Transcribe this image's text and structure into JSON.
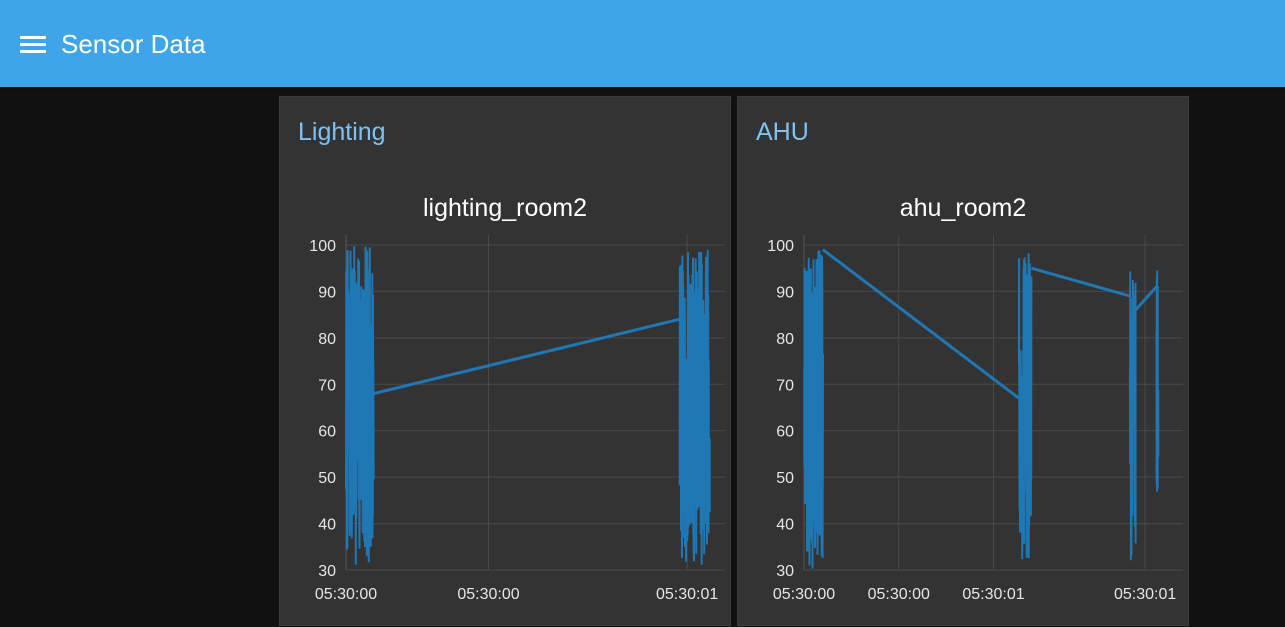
{
  "header": {
    "title": "Sensor Data",
    "menu_icon": "hamburger-menu-icon",
    "background": "#3ea6e8"
  },
  "groups": [
    {
      "title": "Lighting",
      "chart_title": "lighting_room2",
      "line_color": "#1f77b4"
    },
    {
      "title": "AHU",
      "chart_title": "ahu_room2",
      "line_color": "#1f77b4"
    }
  ],
  "chart_data": [
    {
      "type": "line",
      "title": "lighting_room2",
      "xlabel": "",
      "ylabel": "",
      "ylim": [
        30,
        100
      ],
      "grid": true,
      "y_ticks": [
        "100",
        "90",
        "80",
        "70",
        "60",
        "50",
        "40",
        "30"
      ],
      "x_ticks": [
        "05:30:00",
        "05:30:00",
        "05:30:01"
      ],
      "series": [
        {
          "x_seconds": [
            0.0,
            0.003,
            0.006,
            0.009,
            0.012,
            0.015,
            0.018,
            0.021,
            0.024,
            0.027,
            0.03,
            0.033,
            0.036,
            0.039,
            0.042,
            0.045,
            0.048,
            0.051,
            0.054,
            0.057,
            0.06,
            0.063,
            0.066,
            0.069,
            0.072,
            0.075,
            0.078,
            0.081,
            0.084,
            0.087,
            0.09,
            0.093,
            0.096,
            0.099,
            0.102,
            0.105,
            0.108,
            0.111,
            0.114,
            0.117,
            0.12,
            0.123,
            0.126,
            0.129,
            0.132,
            0.135,
            0.138,
            0.141,
            0.144,
            0.147,
            0.15,
            0.153,
            0.156,
            0.159,
            0.162,
            0.165,
            0.168,
            0.171,
            0.174,
            0.177,
            0.18,
            0.183,
            0.186,
            0.189,
            0.192,
            0.195,
            0.198,
            0.201,
            0.204,
            0.207,
            0.21,
            0.213,
            0.216,
            0.219,
            0.222,
            0.225,
            0.228,
            0.231,
            0.234,
            0.237,
            0.24,
            0.243,
            0.246,
            0.249,
            0.252,
            0.255,
            0.258,
            0.261,
            0.264,
            0.267,
            0.27,
            0.273,
            0.276,
            0.279,
            0.282,
            0.285,
            0.288,
            0.291,
            0.294,
            0.297,
            0.3,
            0.303,
            0.306,
            0.309,
            0.312,
            0.315,
            0.318,
            0.321,
            0.324,
            0.327,
            0.33,
            0.333,
            0.336,
            0.339,
            0.342,
            0.345,
            0.348,
            0.351,
            0.354,
            0.357,
            0.36,
            0.363,
            0.366,
            0.369,
            0.372,
            0.375,
            0.378,
            0.381,
            0.384,
            0.387,
            0.39,
            0.393,
            0.396,
            0.399,
            0.402,
            0.405,
            0.408,
            0.411,
            0.414,
            0.417,
            0.42,
            0.423,
            0.426,
            0.429,
            0.432,
            0.435,
            0.438,
            0.441,
            0.444,
            0.447,
            0.45,
            0.453,
            0.456,
            0.459,
            0.462,
            0.465,
            0.468,
            0.471,
            0.474,
            0.477,
            0.48,
            0.483,
            0.486,
            0.489,
            0.492,
            0.495,
            0.498,
            0.501,
            0.504,
            0.507,
            0.51,
            0.513,
            0.516,
            0.519,
            0.522,
            0.525,
            0.528,
            0.531,
            0.534,
            0.537,
            0.54,
            0.543,
            0.546,
            0.549,
            0.552,
            0.555,
            0.558,
            0.561,
            0.564,
            0.567,
            0.57,
            0.573,
            0.576,
            0.579,
            0.582,
            0.585,
            0.588,
            0.591,
            0.594,
            0.597,
            0.6,
            0.603,
            0.606,
            0.609,
            0.612,
            0.615,
            0.618,
            0.621,
            0.624,
            0.627,
            0.63,
            0.633,
            0.636,
            0.639,
            0.642,
            0.645,
            0.648,
            0.651,
            0.654,
            0.657,
            0.66,
            0.663,
            0.666,
            0.669,
            0.672,
            0.675,
            0.678,
            0.681,
            0.684,
            0.687,
            0.69,
            0.693,
            0.696,
            0.699,
            0.702,
            0.705,
            0.708,
            0.711,
            0.714,
            0.717,
            0.72,
            0.723,
            0.726,
            0.729,
            0.732,
            0.735,
            0.738,
            0.741,
            0.744,
            0.747,
            0.75,
            0.753,
            0.756,
            0.759,
            0.762,
            0.765,
            0.768,
            0.771,
            0.774,
            0.777,
            0.78,
            0.783,
            0.786,
            0.789,
            0.792,
            0.795,
            0.798,
            0.801,
            0.804,
            0.807,
            0.81,
            0.813,
            0.816,
            0.819,
            0.822,
            0.825,
            0.828,
            0.831,
            0.834,
            0.837,
            0.84,
            0.843,
            0.846,
            0.849,
            0.852,
            0.855,
            0.858,
            0.861,
            0.864,
            0.867,
            0.87,
            0.873,
            0.876,
            0.879,
            0.882,
            0.885,
            0.888,
            0.891,
            0.894,
            0.897,
            0.9,
            0.903,
            0.906,
            0.909,
            0.912,
            0.915,
            0.918,
            0.921,
            0.924,
            0.927,
            0.93,
            0.933,
            0.936,
            0.939,
            0.942,
            0.945,
            0.948,
            0.951,
            0.954,
            0.957,
            0.96,
            0.963,
            0.966,
            0.969,
            0.972,
            0.975,
            0.978,
            0.981,
            0.984,
            0.987,
            0.99,
            0.993,
            0.996,
            0.999
          ],
          "bursts": [
            {
              "x_start": 0.0,
              "x_end": 0.073,
              "y_min": 31,
              "y_max": 100
            },
            {
              "x_start": 0.88,
              "x_end": 0.96,
              "y_min": 31,
              "y_max": 99
            }
          ],
          "connectors": [
            {
              "x": [
                0.073,
                0.88
              ],
              "y": [
                68,
                84
              ]
            }
          ]
        }
      ]
    },
    {
      "type": "line",
      "title": "ahu_room2",
      "xlabel": "",
      "ylabel": "",
      "ylim": [
        30,
        100
      ],
      "grid": true,
      "y_ticks": [
        "100",
        "90",
        "80",
        "70",
        "60",
        "50",
        "40",
        "30"
      ],
      "x_ticks": [
        "05:30:00",
        "05:30:00",
        "05:30:01",
        "05:30:01"
      ],
      "series": [
        {
          "bursts": [
            {
              "x_start": 0.0,
              "x_end": 0.05,
              "y_min": 30,
              "y_max": 99
            },
            {
              "x_start": 0.567,
              "x_end": 0.6,
              "y_min": 31,
              "y_max": 99
            },
            {
              "x_start": 0.86,
              "x_end": 0.875,
              "y_min": 32,
              "y_max": 95
            },
            {
              "x_start": 0.93,
              "x_end": 0.935,
              "y_min": 46,
              "y_max": 98
            }
          ],
          "connectors": [
            {
              "x": [
                0.05,
                0.567
              ],
              "y": [
                99,
                67
              ]
            },
            {
              "x": [
                0.6,
                0.86
              ],
              "y": [
                95,
                89
              ]
            },
            {
              "x": [
                0.875,
                0.93
              ],
              "y": [
                86,
                91
              ]
            }
          ]
        }
      ]
    }
  ]
}
